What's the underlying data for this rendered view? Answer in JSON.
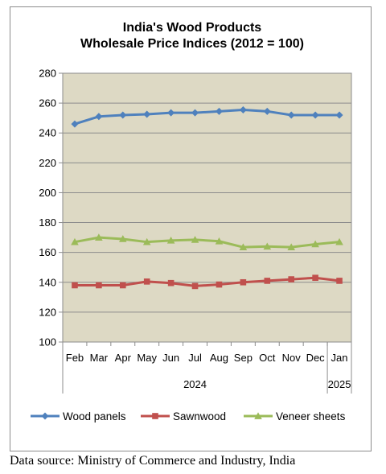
{
  "chart_data": {
    "type": "line",
    "title_lines": [
      "India's Wood Products",
      "Wholesale Price Indices (2012 = 100)"
    ],
    "categories": [
      "Feb",
      "Mar",
      "Apr",
      "May",
      "Jun",
      "Jul",
      "Aug",
      "Sep",
      "Oct",
      "Nov",
      "Dec",
      "Jan"
    ],
    "year_groups": [
      {
        "label": "2024",
        "start": 0,
        "end": 10
      },
      {
        "label": "2025",
        "start": 11,
        "end": 11
      }
    ],
    "ylim": [
      100,
      280
    ],
    "yticks": [
      100,
      120,
      140,
      160,
      180,
      200,
      220,
      240,
      260,
      280
    ],
    "grid": true,
    "legend": "bottom",
    "plot_background": "#ddd9c4",
    "series": [
      {
        "name": "Wood panels",
        "color": "#4f81bd",
        "marker": "diamond",
        "values": [
          246,
          251,
          252,
          252.5,
          253.5,
          253.5,
          254.5,
          255.5,
          254.5,
          252,
          252,
          252
        ]
      },
      {
        "name": "Sawnwood",
        "color": "#c0504d",
        "marker": "square",
        "values": [
          138,
          138,
          138,
          140.5,
          139.5,
          137.5,
          138.5,
          140,
          141,
          142,
          143,
          141
        ]
      },
      {
        "name": "Veneer sheets",
        "color": "#9bbb59",
        "marker": "triangle",
        "values": [
          167,
          170,
          169,
          167,
          168,
          168.5,
          167.5,
          163.5,
          164,
          163.5,
          165.5,
          167
        ]
      }
    ]
  },
  "source_text": "Data source: Ministry of Commerce and Industry, India"
}
